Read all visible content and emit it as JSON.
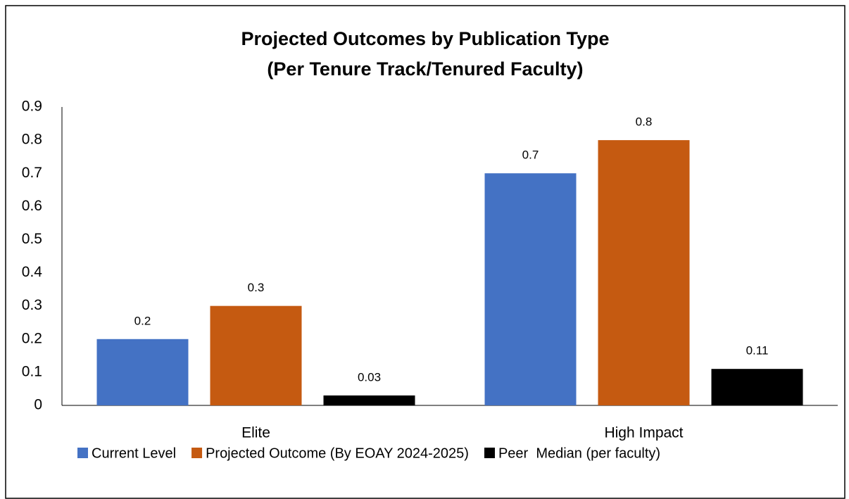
{
  "chart_data": {
    "type": "bar",
    "title": [
      "Projected Outcomes by Publication Type",
      "(Per Tenure Track/Tenured Faculty)"
    ],
    "categories": [
      "Elite",
      "High Impact"
    ],
    "series": [
      {
        "name": "Current Level",
        "color": "#4472c4",
        "values": [
          0.2,
          0.7
        ]
      },
      {
        "name": "Projected Outcome (By EOAY 2024-2025)",
        "color": "#c55a11",
        "values": [
          0.3,
          0.8
        ]
      },
      {
        "name": "Peer  Median (per faculty)",
        "color": "#000000",
        "values": [
          0.03,
          0.11
        ]
      }
    ],
    "ylim": [
      0,
      0.9
    ],
    "yticks": [
      0,
      0.1,
      0.2,
      0.3,
      0.4,
      0.5,
      0.6,
      0.7,
      0.8,
      0.9
    ],
    "grid": false,
    "legend": "bottom"
  }
}
